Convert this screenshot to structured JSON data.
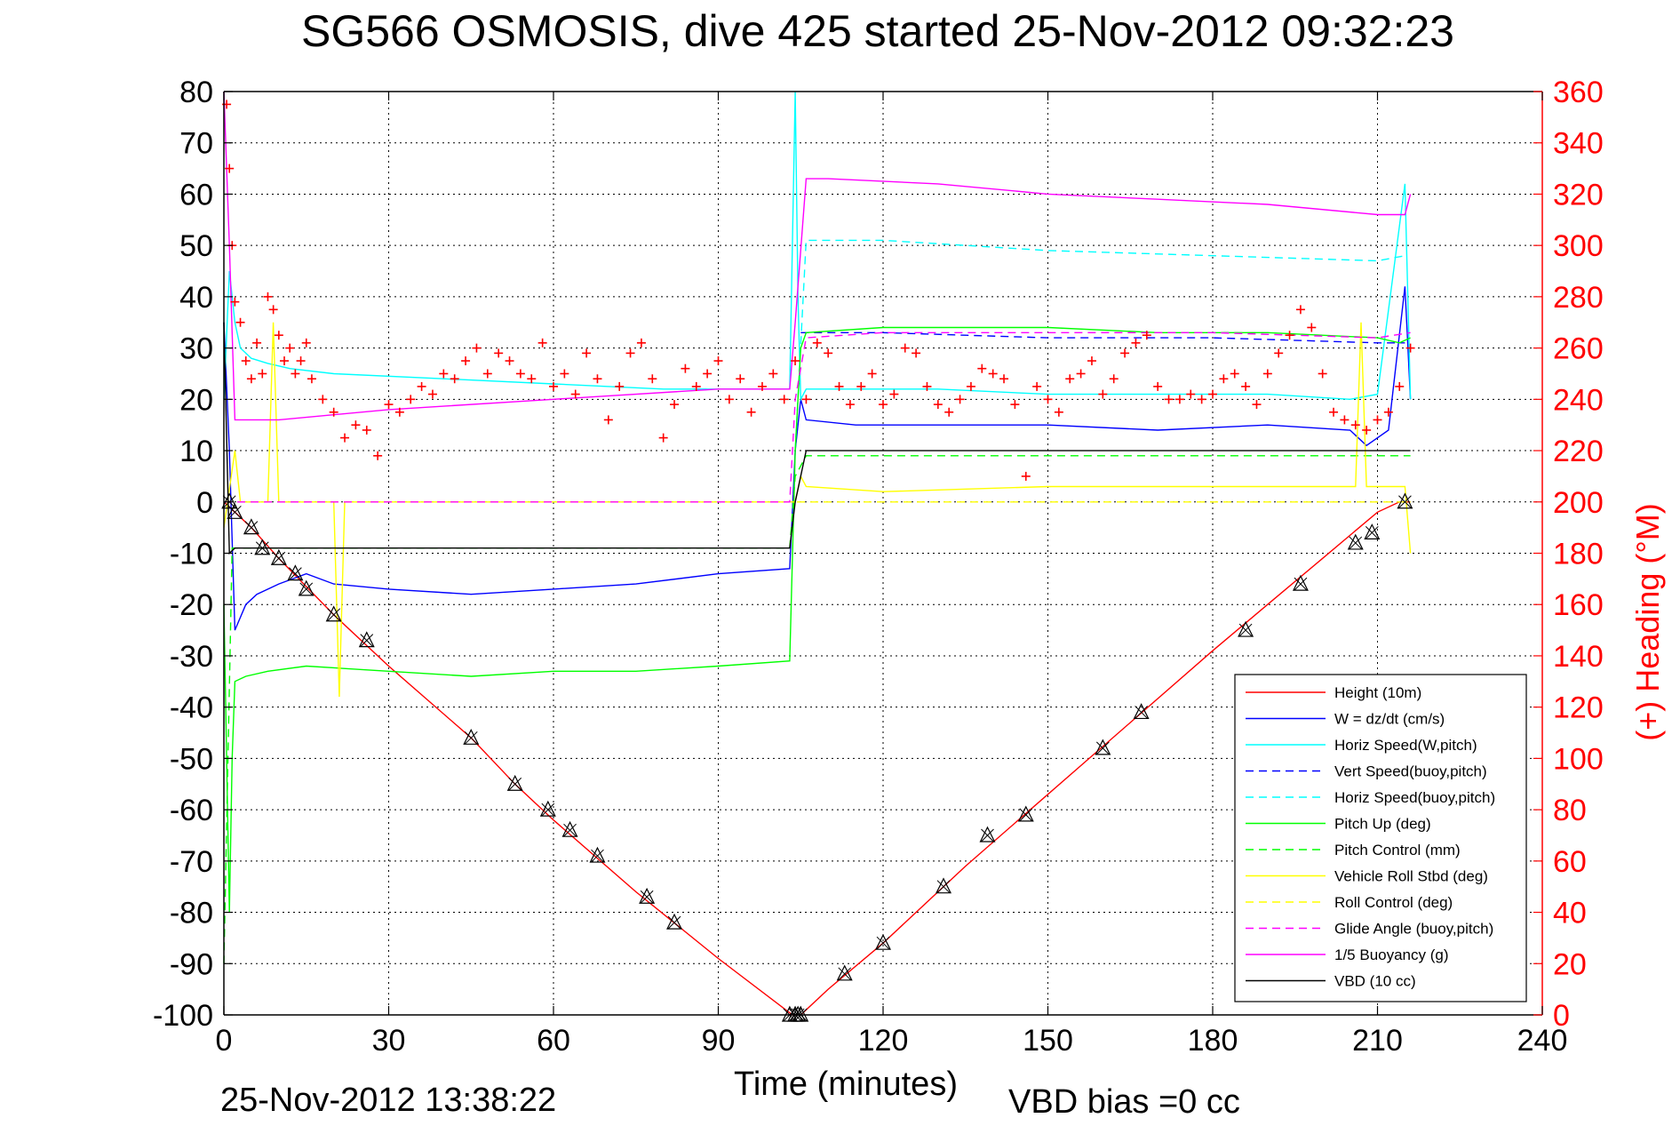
{
  "chart_data": {
    "type": "line",
    "title": "SG566 OSMOSIS, dive 425 started 25-Nov-2012 09:32:23",
    "xlabel": "Time (minutes)",
    "ylabel": "",
    "y2label": "(+) Heading (°M)",
    "footer_left": "25-Nov-2012 13:38:22",
    "footer_right": "VBD bias =0 cc",
    "xlim": [
      0,
      240
    ],
    "ylim": [
      -100,
      80
    ],
    "y2lim": [
      0,
      360
    ],
    "xticks": [
      0,
      30,
      60,
      90,
      120,
      150,
      180,
      210,
      240
    ],
    "yticks": [
      80,
      70,
      60,
      50,
      40,
      30,
      20,
      10,
      0,
      -10,
      -20,
      -30,
      -40,
      -50,
      -60,
      -70,
      -80,
      -90,
      -100
    ],
    "y2ticks": [
      360,
      340,
      320,
      300,
      280,
      260,
      240,
      220,
      200,
      180,
      160,
      140,
      120,
      100,
      80,
      60,
      40,
      20,
      0
    ],
    "grid": true,
    "legend_position": "bottom-right",
    "colors": {
      "axis_left": "#000000",
      "axis_right": "#ff0000",
      "height": "#ff0000",
      "w": "#0000ff",
      "horiz": "#00ffff",
      "pitch": "#00ff00",
      "roll": "#ffff00",
      "glide": "#ff00ff",
      "vbd": "#000000"
    },
    "legend": [
      {
        "label": "Height (10m)",
        "color": "#ff0000",
        "dash": false
      },
      {
        "label": "W = dz/dt (cm/s)",
        "color": "#0000ff",
        "dash": false
      },
      {
        "label": "Horiz Speed(W,pitch)",
        "color": "#00ffff",
        "dash": false
      },
      {
        "label": "Vert Speed(buoy,pitch)",
        "color": "#0000ff",
        "dash": true
      },
      {
        "label": "Horiz Speed(buoy,pitch)",
        "color": "#00ffff",
        "dash": true
      },
      {
        "label": "Pitch Up (deg)",
        "color": "#00ff00",
        "dash": false
      },
      {
        "label": "Pitch Control (mm)",
        "color": "#00ff00",
        "dash": true
      },
      {
        "label": "Vehicle Roll Stbd (deg)",
        "color": "#ffff00",
        "dash": false
      },
      {
        "label": "Roll Control (deg)",
        "color": "#ffff00",
        "dash": true
      },
      {
        "label": "Glide Angle (buoy,pitch)",
        "color": "#ff00ff",
        "dash": true
      },
      {
        "label": "1/5 Buoyancy (g)",
        "color": "#ff00ff",
        "dash": false
      },
      {
        "label": "VBD (10 cc)",
        "color": "#000000",
        "dash": false
      }
    ],
    "series": [
      {
        "name": "Height (10m)",
        "color": "#ff0000",
        "dash": false,
        "x": [
          0,
          2,
          5,
          10,
          20,
          30,
          45,
          53,
          60,
          75,
          90,
          103.5,
          105,
          110,
          120,
          135,
          150,
          165,
          180,
          190,
          200,
          210,
          214,
          216
        ],
        "y": [
          0,
          -2,
          -5,
          -11,
          -22,
          -32,
          -46,
          -55,
          -62,
          -76,
          -89,
          -100,
          -100,
          -95,
          -86,
          -71,
          -57,
          -43,
          -29,
          -20,
          -11,
          -2,
          0,
          0
        ]
      },
      {
        "name": "W = dz/dt (cm/s)",
        "color": "#0000ff",
        "dash": false,
        "x": [
          0,
          1,
          2,
          4,
          6,
          10,
          15,
          20,
          30,
          45,
          60,
          75,
          90,
          103,
          104,
          105,
          106,
          115,
          130,
          150,
          170,
          190,
          205,
          208,
          212,
          215,
          216
        ],
        "y": [
          35,
          10,
          -25,
          -20,
          -18,
          -16,
          -14,
          -16,
          -17,
          -18,
          -17,
          -16,
          -14,
          -13,
          10,
          20,
          16,
          15,
          15,
          15,
          14,
          15,
          14,
          11,
          14,
          42,
          20
        ]
      },
      {
        "name": "Horiz Speed(W,pitch)",
        "color": "#00ffff",
        "dash": false,
        "x": [
          0,
          1,
          2,
          3,
          5,
          8,
          12,
          20,
          40,
          60,
          80,
          100,
          103,
          104,
          104.5,
          105,
          106,
          110,
          130,
          150,
          170,
          190,
          205,
          210,
          215,
          216
        ],
        "y": [
          20,
          45,
          35,
          30,
          28,
          27,
          26,
          25,
          24,
          23,
          22,
          22,
          22,
          80,
          40,
          20,
          22,
          22,
          22,
          21,
          21,
          21,
          20,
          21,
          62,
          20
        ]
      },
      {
        "name": "Vert Speed(buoy,pitch)",
        "color": "#0000ff",
        "dash": true,
        "x": [
          105,
          120,
          150,
          180,
          210,
          215
        ],
        "y": [
          33,
          33,
          32,
          32,
          31,
          31
        ]
      },
      {
        "name": "Horiz Speed(buoy,pitch)",
        "color": "#00ffff",
        "dash": true,
        "x": [
          104,
          106,
          120,
          150,
          180,
          210,
          215
        ],
        "y": [
          10,
          51,
          51,
          49,
          48,
          47,
          48
        ]
      },
      {
        "name": "Pitch Up (deg)",
        "color": "#00ff00",
        "dash": false,
        "x": [
          0,
          1,
          1.5,
          2,
          4,
          8,
          15,
          30,
          45,
          60,
          75,
          90,
          103,
          104,
          105,
          106,
          120,
          150,
          170,
          190,
          210,
          214,
          216
        ],
        "y": [
          -20,
          -80,
          -50,
          -35,
          -34,
          -33,
          -32,
          -33,
          -34,
          -33,
          -33,
          -32,
          -31,
          10,
          30,
          33,
          34,
          34,
          33,
          33,
          32,
          31,
          32
        ]
      },
      {
        "name": "Pitch Control (mm)",
        "color": "#00ff00",
        "dash": true,
        "x": [
          0,
          1.5,
          3,
          20,
          60,
          103,
          104,
          106,
          120,
          160,
          200,
          216
        ],
        "y": [
          -90,
          -9,
          -9,
          -9,
          -9,
          -9,
          5,
          9,
          9,
          9,
          9,
          9
        ]
      },
      {
        "name": "Vehicle Roll Stbd (deg)",
        "color": "#ffff00",
        "dash": false,
        "x": [
          0,
          2,
          3,
          8,
          9,
          10,
          20,
          21,
          22,
          30,
          60,
          90,
          103,
          104,
          105,
          106,
          120,
          150,
          180,
          190,
          206,
          207,
          208,
          215,
          216
        ],
        "y": [
          -5,
          10,
          0,
          0,
          35,
          0,
          0,
          -38,
          0,
          0,
          0,
          0,
          0,
          0,
          5,
          3,
          2,
          3,
          3,
          3,
          3,
          35,
          3,
          3,
          -10
        ]
      },
      {
        "name": "Roll Control (deg)",
        "color": "#ffff00",
        "dash": true,
        "x": [
          0,
          5,
          30,
          60,
          90,
          103,
          105,
          120,
          150,
          180,
          210,
          216
        ],
        "y": [
          0,
          0,
          0,
          0,
          0,
          0,
          0,
          0,
          0,
          0,
          0,
          0
        ]
      },
      {
        "name": "Glide Angle (buoy,pitch)",
        "color": "#ff00ff",
        "dash": true,
        "x": [
          0,
          2,
          30,
          60,
          90,
          103,
          104,
          106,
          120,
          150,
          180,
          210,
          216
        ],
        "y": [
          0,
          0,
          0,
          0,
          0,
          0,
          20,
          32,
          33,
          33,
          33,
          32,
          33
        ]
      },
      {
        "name": "1/5 Buoyancy (g)",
        "color": "#ff00ff",
        "dash": false,
        "x": [
          0,
          1,
          2,
          10,
          30,
          60,
          90,
          103,
          104,
          106,
          110,
          130,
          150,
          170,
          190,
          210,
          215,
          216
        ],
        "y": [
          80,
          50,
          16,
          16,
          18,
          20,
          22,
          22,
          35,
          63,
          63,
          62,
          60,
          59,
          58,
          56,
          56,
          60
        ]
      },
      {
        "name": "VBD (10 cc)",
        "color": "#000000",
        "dash": false,
        "x": [
          0,
          1,
          2,
          103,
          104,
          106,
          150,
          200,
          216
        ],
        "y": [
          35,
          -10,
          -9,
          -9,
          0,
          10,
          10,
          10,
          10
        ]
      }
    ],
    "heading": {
      "name": "(+) Heading (°M)",
      "color": "#ff0000",
      "x": [
        0.5,
        1,
        1.5,
        2,
        3,
        4,
        5,
        6,
        7,
        8,
        9,
        10,
        11,
        12,
        13,
        14,
        15,
        16,
        18,
        20,
        22,
        24,
        26,
        28,
        30,
        32,
        34,
        36,
        38,
        40,
        42,
        44,
        46,
        48,
        50,
        52,
        54,
        56,
        58,
        60,
        62,
        64,
        66,
        68,
        70,
        72,
        74,
        76,
        78,
        80,
        82,
        84,
        86,
        88,
        90,
        92,
        94,
        96,
        98,
        100,
        102,
        104,
        106,
        108,
        110,
        112,
        114,
        116,
        118,
        120,
        122,
        124,
        126,
        128,
        130,
        132,
        134,
        136,
        138,
        140,
        142,
        144,
        146,
        148,
        150,
        152,
        154,
        156,
        158,
        160,
        162,
        164,
        166,
        168,
        170,
        172,
        174,
        176,
        178,
        180,
        182,
        184,
        186,
        188,
        190,
        192,
        194,
        196,
        198,
        200,
        202,
        204,
        206,
        208,
        210,
        212,
        214,
        216
      ],
      "y": [
        355,
        330,
        300,
        278,
        270,
        255,
        248,
        262,
        250,
        280,
        275,
        265,
        255,
        260,
        250,
        255,
        262,
        248,
        240,
        235,
        225,
        230,
        228,
        218,
        238,
        235,
        240,
        245,
        242,
        250,
        248,
        255,
        260,
        250,
        258,
        255,
        250,
        248,
        262,
        245,
        250,
        242,
        258,
        248,
        232,
        245,
        258,
        262,
        248,
        225,
        238,
        252,
        245,
        250,
        255,
        240,
        248,
        235,
        245,
        250,
        240,
        255,
        240,
        262,
        258,
        245,
        238,
        245,
        250,
        238,
        242,
        260,
        258,
        245,
        238,
        235,
        240,
        245,
        252,
        250,
        248,
        238,
        210,
        245,
        240,
        235,
        248,
        250,
        255,
        242,
        248,
        258,
        262,
        265,
        245,
        240,
        240,
        242,
        240,
        242,
        248,
        250,
        245,
        238,
        250,
        258,
        265,
        275,
        268,
        250,
        235,
        232,
        230,
        228,
        232,
        235,
        245,
        260
      ]
    },
    "markers": {
      "name": "Height (10m)",
      "color": "#000000",
      "x": [
        1,
        2,
        5,
        7,
        10,
        13,
        15,
        20,
        26,
        45,
        53,
        59,
        63,
        68,
        77,
        82,
        103,
        104,
        104.5,
        105,
        113,
        120,
        131,
        139,
        146,
        160,
        167,
        186,
        196,
        206,
        209,
        215
      ],
      "y": [
        0,
        -2,
        -5,
        -9,
        -11,
        -14,
        -17,
        -22,
        -27,
        -46,
        -55,
        -60,
        -64,
        -69,
        -77,
        -82,
        -100,
        -100,
        -100,
        -100,
        -92,
        -86,
        -75,
        -65,
        -61,
        -48,
        -41,
        -25,
        -16,
        -8,
        -6,
        0
      ]
    }
  }
}
